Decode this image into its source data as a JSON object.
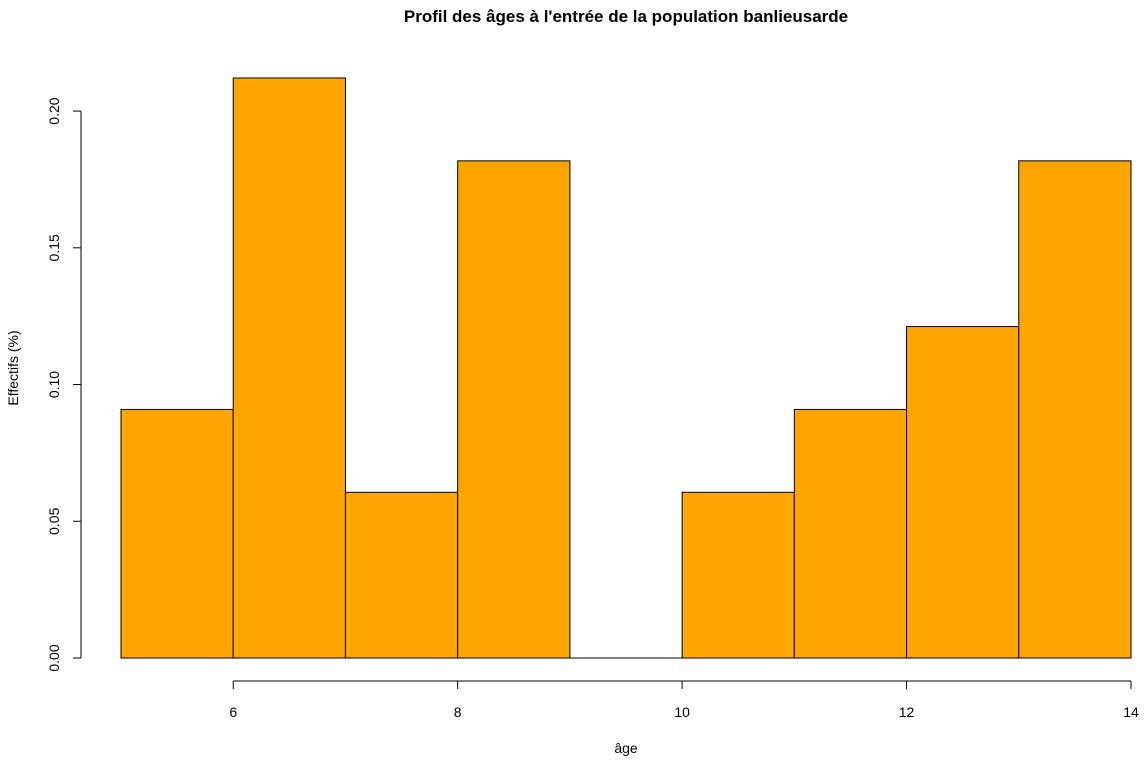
{
  "chart_data": {
    "type": "bar",
    "title": "Profil des âges à l'entrée de la population banlieusarde",
    "xlabel": "âge",
    "ylabel": "Effectifs (%)",
    "bins": [
      {
        "start": 5,
        "end": 6,
        "value": 0.0909
      },
      {
        "start": 6,
        "end": 7,
        "value": 0.2121
      },
      {
        "start": 7,
        "end": 8,
        "value": 0.0606
      },
      {
        "start": 8,
        "end": 9,
        "value": 0.1818
      },
      {
        "start": 9,
        "end": 10,
        "value": 0.0
      },
      {
        "start": 10,
        "end": 11,
        "value": 0.0606
      },
      {
        "start": 11,
        "end": 12,
        "value": 0.0909
      },
      {
        "start": 12,
        "end": 13,
        "value": 0.1212
      },
      {
        "start": 13,
        "end": 14,
        "value": 0.1818
      }
    ],
    "xlim": [
      5,
      14
    ],
    "ylim": [
      0,
      0.2121
    ],
    "x_ticks": [
      6,
      8,
      10,
      12,
      14
    ],
    "x_tick_labels": [
      "6",
      "8",
      "10",
      "12",
      "14"
    ],
    "y_ticks": [
      0.0,
      0.05,
      0.1,
      0.15,
      0.2
    ],
    "y_tick_labels": [
      "0.00",
      "0.05",
      "0.10",
      "0.15",
      "0.20"
    ],
    "bar_color": "#FFA500",
    "edge_color": "#000000",
    "grid": false,
    "legend": "none"
  }
}
